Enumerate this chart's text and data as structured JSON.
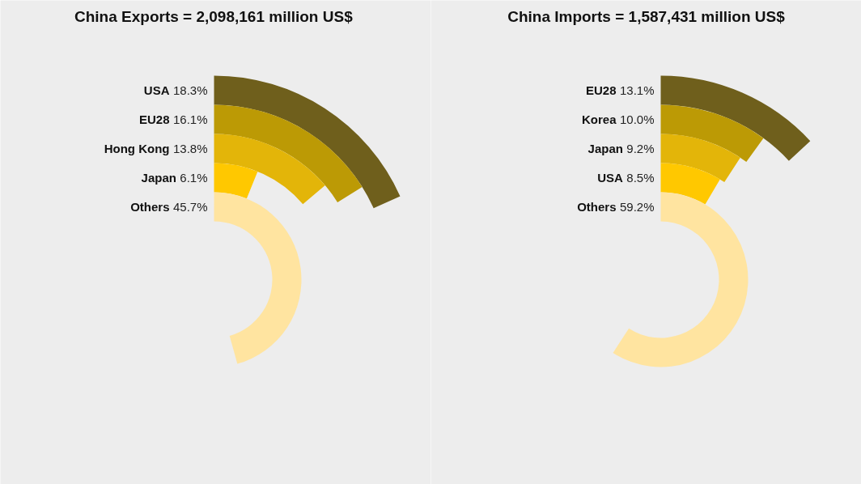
{
  "chart_data": [
    {
      "type": "other",
      "title": "China Exports =  2,098,161 million US$",
      "categories": [
        "USA",
        "EU28",
        "Hong Kong",
        "Japan",
        "Others"
      ],
      "values": [
        18.3,
        16.1,
        13.8,
        6.1,
        45.7
      ],
      "value_labels": [
        "18.3%",
        "16.1%",
        "13.8%",
        "6.1%",
        "45.7%"
      ],
      "colors": [
        "#6f5f1c",
        "#bc9a05",
        "#e3b509",
        "#ffc800",
        "#ffe4a0"
      ]
    },
    {
      "type": "other",
      "title": "China Imports = 1,587,431 million US$",
      "categories": [
        "EU28",
        "Korea",
        "Japan",
        "USA",
        "Others"
      ],
      "values": [
        13.1,
        10.0,
        9.2,
        8.5,
        59.2
      ],
      "value_labels": [
        "13.1%",
        "10.0%",
        "9.2%",
        "8.5%",
        "59.2%"
      ],
      "colors": [
        "#6f5f1c",
        "#bc9a05",
        "#e3b509",
        "#ffc800",
        "#ffe4a0"
      ]
    }
  ]
}
